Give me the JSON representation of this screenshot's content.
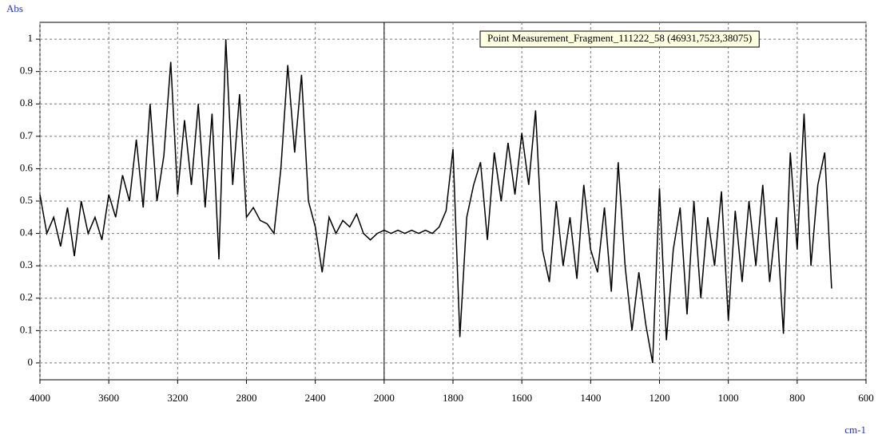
{
  "chart_data": {
    "type": "line",
    "y_label": "Abs",
    "x_label": "cm-1",
    "annotation": "Point Measurement_Fragment_111222_58 (46931,7523,38075)",
    "xlim": [
      4000,
      600
    ],
    "xbreak": 2000,
    "xticks": [
      4000,
      3600,
      3200,
      2800,
      2400,
      2000,
      1800,
      1600,
      1400,
      1200,
      1000,
      800,
      600
    ],
    "ylim": [
      -0.052,
      1.052
    ],
    "yticks": [
      0,
      0.1,
      0.2,
      0.3,
      0.4,
      0.5,
      0.6,
      0.7,
      0.8,
      0.9,
      1
    ],
    "grid": true,
    "x": [
      4000,
      3960,
      3920,
      3880,
      3840,
      3800,
      3760,
      3720,
      3680,
      3640,
      3600,
      3560,
      3520,
      3480,
      3440,
      3400,
      3360,
      3320,
      3280,
      3240,
      3200,
      3160,
      3120,
      3080,
      3040,
      3000,
      2960,
      2920,
      2880,
      2840,
      2800,
      2760,
      2720,
      2680,
      2640,
      2600,
      2560,
      2520,
      2480,
      2440,
      2400,
      2360,
      2320,
      2280,
      2240,
      2200,
      2160,
      2120,
      2080,
      2040,
      2000,
      1980,
      1960,
      1940,
      1920,
      1900,
      1880,
      1860,
      1840,
      1820,
      1800,
      1780,
      1760,
      1740,
      1720,
      1700,
      1680,
      1660,
      1640,
      1620,
      1600,
      1580,
      1560,
      1540,
      1520,
      1500,
      1480,
      1460,
      1440,
      1420,
      1400,
      1380,
      1360,
      1340,
      1320,
      1300,
      1280,
      1260,
      1240,
      1220,
      1200,
      1180,
      1160,
      1140,
      1120,
      1100,
      1080,
      1060,
      1040,
      1020,
      1000,
      980,
      960,
      940,
      920,
      900,
      880,
      860,
      840,
      820,
      800,
      780,
      760,
      740,
      720,
      700
    ],
    "series": [
      {
        "name": "Point Measurement",
        "color": "#000000",
        "values": [
          0.52,
          0.4,
          0.45,
          0.36,
          0.48,
          0.33,
          0.5,
          0.4,
          0.45,
          0.38,
          0.52,
          0.45,
          0.58,
          0.5,
          0.69,
          0.48,
          0.8,
          0.5,
          0.64,
          0.93,
          0.52,
          0.75,
          0.55,
          0.8,
          0.48,
          0.77,
          0.32,
          1.0,
          0.55,
          0.83,
          0.45,
          0.48,
          0.44,
          0.43,
          0.4,
          0.6,
          0.92,
          0.65,
          0.89,
          0.5,
          0.42,
          0.28,
          0.45,
          0.4,
          0.44,
          0.42,
          0.46,
          0.4,
          0.38,
          0.4,
          0.41,
          0.4,
          0.41,
          0.4,
          0.41,
          0.4,
          0.41,
          0.4,
          0.42,
          0.47,
          0.66,
          0.08,
          0.45,
          0.55,
          0.62,
          0.38,
          0.65,
          0.5,
          0.68,
          0.52,
          0.71,
          0.55,
          0.78,
          0.35,
          0.25,
          0.5,
          0.3,
          0.45,
          0.26,
          0.55,
          0.35,
          0.28,
          0.48,
          0.22,
          0.62,
          0.3,
          0.1,
          0.28,
          0.12,
          0.0,
          0.54,
          0.07,
          0.35,
          0.48,
          0.15,
          0.5,
          0.2,
          0.45,
          0.3,
          0.53,
          0.13,
          0.47,
          0.25,
          0.5,
          0.3,
          0.55,
          0.25,
          0.45,
          0.09,
          0.65,
          0.35,
          0.77,
          0.3,
          0.55,
          0.65,
          0.23
        ]
      }
    ]
  }
}
